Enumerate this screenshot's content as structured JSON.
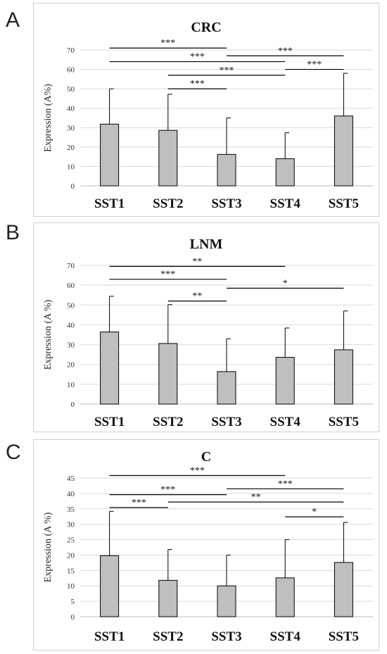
{
  "chart_data": [
    {
      "panel_label": "A",
      "type": "bar",
      "title": "CRC",
      "ylabel": "Expression (A%)",
      "categories": [
        "SST1",
        "SST2",
        "SST3",
        "SST4",
        "SST5"
      ],
      "values": [
        31.8,
        28.6,
        16.2,
        14.0,
        36.0
      ],
      "error": [
        18.2,
        18.6,
        18.8,
        13.4,
        22.0
      ],
      "ylim": [
        0,
        70
      ],
      "yticks": [
        0,
        10,
        20,
        30,
        40,
        50,
        60,
        70
      ],
      "grid": true,
      "significance": [
        {
          "from": 0,
          "to": 2,
          "y": 71,
          "label": "***"
        },
        {
          "from": 0,
          "to": 3,
          "y": 64,
          "label": "***"
        },
        {
          "from": 2,
          "to": 4,
          "y": 67,
          "label": "***"
        },
        {
          "from": 1,
          "to": 3,
          "y": 57,
          "label": "***"
        },
        {
          "from": 3,
          "to": 4,
          "y": 60,
          "label": "***"
        },
        {
          "from": 1,
          "to": 2,
          "y": 50,
          "label": "***"
        }
      ]
    },
    {
      "panel_label": "B",
      "type": "bar",
      "title": "LNM",
      "ylabel": "Expression (A %)",
      "categories": [
        "SST1",
        "SST2",
        "SST3",
        "SST4",
        "SST5"
      ],
      "values": [
        36.4,
        30.6,
        16.4,
        23.6,
        27.4
      ],
      "error": [
        18.0,
        19.6,
        16.6,
        14.8,
        19.6
      ],
      "ylim": [
        0,
        70
      ],
      "yticks": [
        0,
        10,
        20,
        30,
        40,
        50,
        60,
        70
      ],
      "grid": true,
      "significance": [
        {
          "from": 0,
          "to": 3,
          "y": 69.5,
          "label": "**"
        },
        {
          "from": 0,
          "to": 2,
          "y": 63,
          "label": "***"
        },
        {
          "from": 2,
          "to": 4,
          "y": 58.5,
          "label": "*"
        },
        {
          "from": 1,
          "to": 2,
          "y": 52,
          "label": "**"
        }
      ]
    },
    {
      "panel_label": "C",
      "type": "bar",
      "title": "C",
      "ylabel": "Expression (A %)",
      "categories": [
        "SST1",
        "SST2",
        "SST3",
        "SST4",
        "SST5"
      ],
      "values": [
        19.8,
        11.8,
        10.0,
        12.6,
        17.6
      ],
      "error": [
        14.4,
        10.0,
        10.0,
        12.4,
        13.0
      ],
      "ylim": [
        0,
        45
      ],
      "yticks": [
        0,
        5,
        10,
        15,
        20,
        25,
        30,
        35,
        40,
        45
      ],
      "grid": true,
      "significance": [
        {
          "from": 0,
          "to": 3,
          "y": 45.8,
          "label": "***"
        },
        {
          "from": 0,
          "to": 2,
          "y": 39.6,
          "label": "***"
        },
        {
          "from": 2,
          "to": 4,
          "y": 41.5,
          "label": "***"
        },
        {
          "from": 0,
          "to": 1,
          "y": 35.4,
          "label": "***"
        },
        {
          "from": 1,
          "to": 4,
          "y": 37.2,
          "label": "**"
        },
        {
          "from": 3,
          "to": 4,
          "y": 32.4,
          "label": "*"
        }
      ]
    }
  ]
}
